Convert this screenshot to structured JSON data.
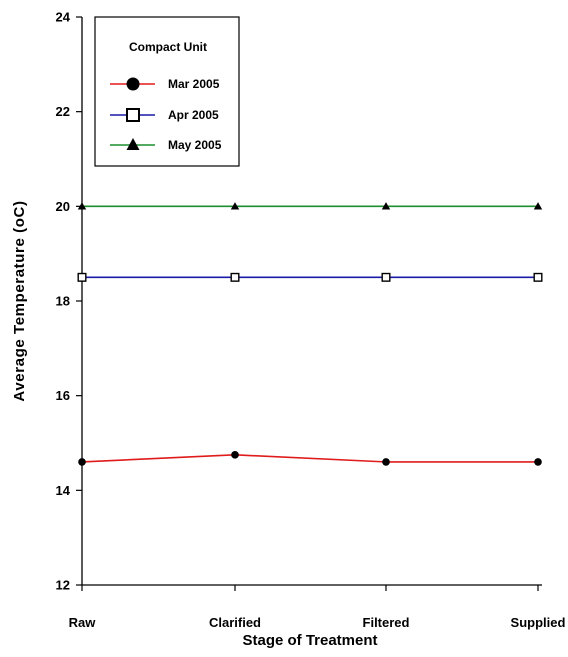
{
  "chart_data": {
    "type": "line",
    "title": "",
    "xlabel": "Stage of Treatment",
    "ylabel": "Average Temperature (oC)",
    "categories": [
      "Raw",
      "Clarified",
      "Filtered",
      "Supplied"
    ],
    "ylim": [
      12,
      24
    ],
    "yticks": [
      "12",
      "14",
      "16",
      "18",
      "20",
      "22",
      "24"
    ],
    "legend": {
      "title": "Compact Unit",
      "position": "top-left"
    },
    "series": [
      {
        "name": "Mar 2005",
        "color": "#e01b1b",
        "marker": "circle",
        "values": [
          14.6,
          14.75,
          14.6,
          14.6
        ]
      },
      {
        "name": "Apr 2005",
        "color": "#1a1aa8",
        "marker": "square-open",
        "values": [
          18.5,
          18.5,
          18.5,
          18.5
        ]
      },
      {
        "name": "May 2005",
        "color": "#1e8f2e",
        "marker": "triangle",
        "values": [
          20,
          20,
          20,
          20
        ]
      }
    ],
    "grid": false
  }
}
